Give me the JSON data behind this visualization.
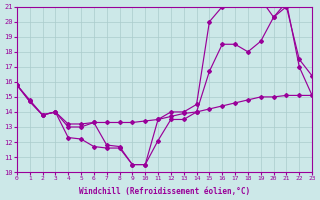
{
  "xlabel": "Windchill (Refroidissement éolien,°C)",
  "bg_color": "#cce8e8",
  "line_color": "#990099",
  "grid_color": "#aacccc",
  "xlim": [
    0,
    23
  ],
  "ylim": [
    10,
    21
  ],
  "xticks": [
    0,
    1,
    2,
    3,
    4,
    5,
    6,
    7,
    8,
    9,
    10,
    11,
    12,
    13,
    14,
    15,
    16,
    17,
    18,
    19,
    20,
    21,
    22,
    23
  ],
  "yticks": [
    10,
    11,
    12,
    13,
    14,
    15,
    16,
    17,
    18,
    19,
    20,
    21
  ],
  "line1_x": [
    0,
    1,
    2,
    3,
    4,
    5,
    6,
    7,
    8,
    9,
    10,
    11,
    12,
    13,
    14,
    15,
    16,
    17,
    18,
    19,
    20,
    21,
    22,
    23
  ],
  "line1_y": [
    15.8,
    14.7,
    13.8,
    14.0,
    12.3,
    12.2,
    11.7,
    11.6,
    11.6,
    10.5,
    10.5,
    12.1,
    13.5,
    13.5,
    14.0,
    16.7,
    18.5,
    18.5,
    18.0,
    18.7,
    20.3,
    21.0,
    17.5,
    16.4
  ],
  "line2_x": [
    0,
    1,
    2,
    3,
    4,
    5,
    6,
    7,
    8,
    9,
    10,
    11,
    12,
    13,
    14,
    15,
    16,
    17,
    18,
    19,
    20,
    21,
    22,
    23
  ],
  "line2_y": [
    15.8,
    14.7,
    13.8,
    14.0,
    13.0,
    13.0,
    13.3,
    11.8,
    11.7,
    10.5,
    10.5,
    13.5,
    14.0,
    14.0,
    14.5,
    20.0,
    21.0,
    21.5,
    21.5,
    21.5,
    20.3,
    21.3,
    17.0,
    15.1
  ],
  "line3_x": [
    0,
    1,
    2,
    3,
    4,
    5,
    6,
    7,
    8,
    9,
    10,
    11,
    12,
    13,
    14,
    15,
    16,
    17,
    18,
    19,
    20,
    21,
    22,
    23
  ],
  "line3_y": [
    15.8,
    14.8,
    13.8,
    14.0,
    13.2,
    13.2,
    13.3,
    13.3,
    13.3,
    13.3,
    13.4,
    13.5,
    13.7,
    13.9,
    14.0,
    14.2,
    14.4,
    14.6,
    14.8,
    15.0,
    15.0,
    15.1,
    15.1,
    15.1
  ]
}
